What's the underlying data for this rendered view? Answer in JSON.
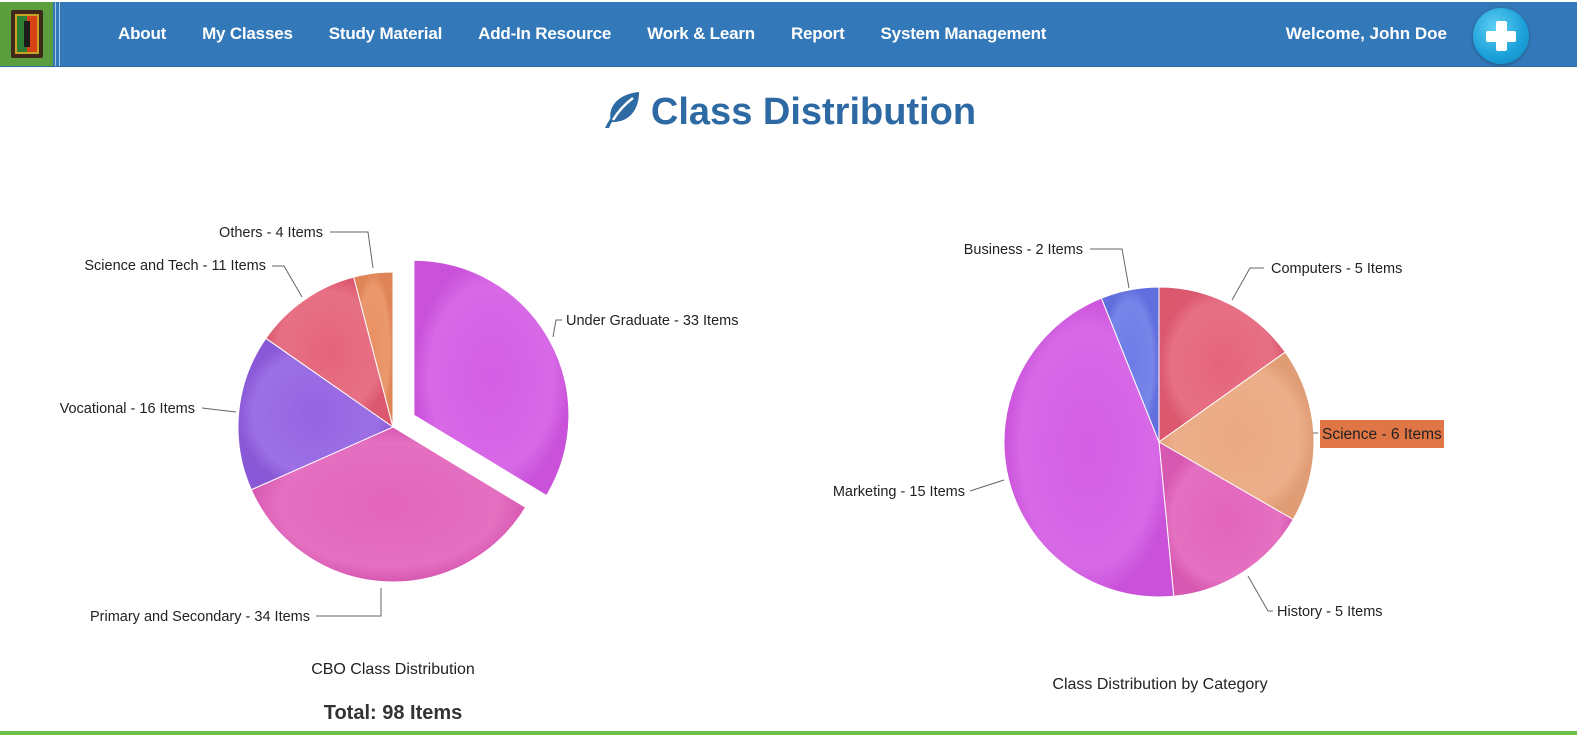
{
  "nav": {
    "items": [
      "About",
      "My Classes",
      "Study Material",
      "Add-In Resource",
      "Work & Learn",
      "Report",
      "System Management"
    ],
    "welcome": "Welcome, John Doe"
  },
  "page": {
    "title": "Class Distribution",
    "total": "Total: 98 Items"
  },
  "chart_data": [
    {
      "type": "pie",
      "title": "CBO Class Distribution",
      "slices": [
        {
          "label": "Under Graduate",
          "value": 33,
          "display": "Under Graduate - 33 Items",
          "color": "#d255e3",
          "exploded": true
        },
        {
          "label": "Primary and Secondary",
          "value": 34,
          "display": "Primary and Secondary - 34 Items",
          "color": "#e05cb8"
        },
        {
          "label": "Vocational",
          "value": 16,
          "display": "Vocational - 16 Items",
          "color": "#8f5ce0"
        },
        {
          "label": "Science and Tech",
          "value": 11,
          "display": "Science and Tech - 11 Items",
          "color": "#e45c74"
        },
        {
          "label": "Others",
          "value": 4,
          "display": "Others - 4 Items",
          "color": "#e88a5a"
        }
      ]
    },
    {
      "type": "pie",
      "title": "Class Distribution by Category",
      "slices": [
        {
          "label": "Computers",
          "value": 5,
          "display": "Computers - 5 Items",
          "color": "#e45c74"
        },
        {
          "label": "Science",
          "value": 6,
          "display": "Science - 6 Items",
          "color": "#e9a47a",
          "highlighted": true
        },
        {
          "label": "History",
          "value": 5,
          "display": "History - 5 Items",
          "color": "#e05cb8"
        },
        {
          "label": "Marketing",
          "value": 15,
          "display": "Marketing - 15 Items",
          "color": "#d255e3"
        },
        {
          "label": "Business",
          "value": 2,
          "display": "Business - 2 Items",
          "color": "#6474e6"
        }
      ],
      "tooltip": {
        "text": "Science - 6 Items",
        "color": "#e07646"
      }
    }
  ]
}
